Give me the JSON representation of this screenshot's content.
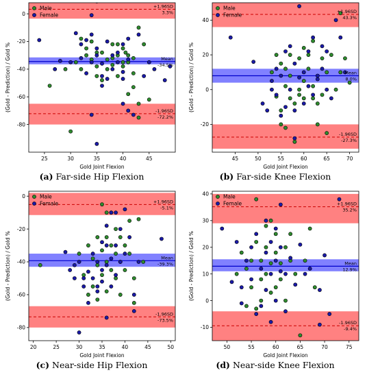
{
  "colors": {
    "male": "#2e8b2e",
    "female": "#1a1aa8",
    "limit_band": "#ff6b6b",
    "mean_band": "#6b6bff",
    "limit_line": "#cc0000",
    "mean_line": "#0000cc"
  },
  "legend": {
    "male": "Male",
    "female": "Female"
  },
  "chart_data": [
    {
      "type": "scatter",
      "caption": {
        "letter": "(a)",
        "text": "Far-side Hip Flexion"
      },
      "xlabel": "Gold Joint Flexion",
      "ylabel": "(Gold - Prediction) / Gold %",
      "xlim": [
        22,
        50
      ],
      "ylim": [
        -100,
        8
      ],
      "xticks": [
        25,
        30,
        35,
        40,
        45
      ],
      "yticks": [
        0,
        -20,
        -40,
        -60,
        -80
      ],
      "upper": {
        "label": "+1.96SD",
        "value_label": "3.3%",
        "value": 3.3,
        "band": [
          -3.5,
          10
        ]
      },
      "mean": {
        "label": "Mean",
        "value_label": "-34.5%",
        "value": -34.5,
        "band": [
          -36.5,
          -31.5
        ]
      },
      "lower": {
        "label": "-1.96SD",
        "value_label": "-72.2%",
        "value": -72.2,
        "band": [
          -80,
          -65
        ]
      },
      "male": [
        [
          26,
          -52
        ],
        [
          29,
          -40
        ],
        [
          30,
          -85
        ],
        [
          31,
          -35
        ],
        [
          32,
          -40
        ],
        [
          32,
          -18
        ],
        [
          33,
          -30
        ],
        [
          33,
          -25
        ],
        [
          34,
          -33
        ],
        [
          34,
          -20
        ],
        [
          35,
          -38
        ],
        [
          35,
          -28
        ],
        [
          35,
          -45
        ],
        [
          36,
          -28
        ],
        [
          36,
          -48
        ],
        [
          37,
          -33
        ],
        [
          37,
          -40
        ],
        [
          38,
          -22
        ],
        [
          38,
          -32
        ],
        [
          38,
          -37
        ],
        [
          39,
          -22
        ],
        [
          39,
          -30
        ],
        [
          39,
          -45
        ],
        [
          40,
          -25
        ],
        [
          40,
          -35
        ],
        [
          40,
          -38
        ],
        [
          40.5,
          -28
        ],
        [
          41,
          -30
        ],
        [
          41,
          -35
        ],
        [
          41,
          -58
        ],
        [
          42,
          -32
        ],
        [
          42,
          -43
        ],
        [
          42,
          -53
        ],
        [
          43,
          -65
        ],
        [
          43,
          -75
        ],
        [
          43,
          -10
        ],
        [
          44,
          -22
        ],
        [
          45,
          -62
        ]
      ],
      "female": [
        [
          24,
          -19
        ],
        [
          27,
          -40
        ],
        [
          28,
          -34
        ],
        [
          30,
          -35
        ],
        [
          31,
          -14
        ],
        [
          32,
          -22
        ],
        [
          32,
          -32
        ],
        [
          33,
          -19
        ],
        [
          33,
          -43
        ],
        [
          34,
          -35
        ],
        [
          34,
          -15
        ],
        [
          34,
          -73
        ],
        [
          34,
          -1
        ],
        [
          35,
          9
        ],
        [
          35,
          -25
        ],
        [
          35,
          -30
        ],
        [
          35,
          -94
        ],
        [
          36,
          -36
        ],
        [
          36,
          -45
        ],
        [
          36,
          -52
        ],
        [
          37,
          -20
        ],
        [
          37,
          -47
        ],
        [
          38,
          -30
        ],
        [
          38,
          -40
        ],
        [
          39,
          -28
        ],
        [
          39,
          -35
        ],
        [
          40,
          -22
        ],
        [
          40,
          -42
        ],
        [
          40,
          -47
        ],
        [
          40,
          -65
        ],
        [
          41,
          -18
        ],
        [
          41,
          -33
        ],
        [
          41,
          -70
        ],
        [
          42,
          -73
        ],
        [
          43,
          -15
        ],
        [
          44,
          -45
        ],
        [
          45,
          -35
        ],
        [
          46,
          -40
        ],
        [
          48,
          -48
        ],
        [
          49,
          -38
        ]
      ]
    },
    {
      "type": "scatter",
      "caption": {
        "letter": "(b)",
        "text": "Far-side Knee Flexion"
      },
      "xlabel": "Gold Joint Flexion",
      "ylabel": "(Gold - Prediction) / Gold %",
      "xlim": [
        40,
        72
      ],
      "ylim": [
        -36,
        50
      ],
      "xticks": [
        45,
        50,
        55,
        60,
        65,
        70
      ],
      "yticks": [
        40,
        20,
        0,
        -20
      ],
      "upper": {
        "label": "+1.96SD",
        "value_label": "43.3%",
        "value": 43.3,
        "band": [
          36,
          50
        ]
      },
      "mean": {
        "label": "Mean",
        "value_label": "8.0%",
        "value": 8.0,
        "band": [
          4,
          12
        ]
      },
      "lower": {
        "label": "-1.96SD",
        "value_label": "-27.3%",
        "value": -27.3,
        "band": [
          -34,
          -20
        ]
      },
      "male": [
        [
          53,
          10
        ],
        [
          54,
          20
        ],
        [
          54,
          -4
        ],
        [
          55,
          -20
        ],
        [
          55,
          15
        ],
        [
          55,
          -12
        ],
        [
          56,
          12
        ],
        [
          56,
          2
        ],
        [
          56,
          -22
        ],
        [
          57,
          20
        ],
        [
          57,
          8
        ],
        [
          57,
          -5
        ],
        [
          58,
          -30
        ],
        [
          58,
          -8
        ],
        [
          59,
          18
        ],
        [
          59,
          0
        ],
        [
          59,
          -3
        ],
        [
          60,
          24
        ],
        [
          60,
          5
        ],
        [
          60,
          -5
        ],
        [
          61,
          20
        ],
        [
          61,
          12
        ],
        [
          62,
          2
        ],
        [
          62,
          -5
        ],
        [
          62,
          28
        ],
        [
          63,
          -8
        ],
        [
          63,
          -20
        ],
        [
          64,
          18
        ],
        [
          64,
          -3
        ],
        [
          65,
          -25
        ],
        [
          65,
          10
        ],
        [
          66,
          20
        ],
        [
          67,
          0
        ],
        [
          68,
          10
        ],
        [
          68,
          44
        ],
        [
          69,
          18
        ],
        [
          70,
          4
        ]
      ],
      "female": [
        [
          44,
          30
        ],
        [
          49,
          16
        ],
        [
          51,
          -8
        ],
        [
          52,
          -12
        ],
        [
          53,
          0
        ],
        [
          53,
          5
        ],
        [
          54,
          -3
        ],
        [
          54,
          12
        ],
        [
          55,
          8
        ],
        [
          55,
          -15
        ],
        [
          56,
          22
        ],
        [
          56,
          -10
        ],
        [
          57,
          25
        ],
        [
          57,
          0
        ],
        [
          58,
          15
        ],
        [
          58,
          -12
        ],
        [
          58,
          -28
        ],
        [
          59,
          7
        ],
        [
          59,
          48
        ],
        [
          60,
          10
        ],
        [
          60,
          -8
        ],
        [
          61,
          22
        ],
        [
          61,
          2
        ],
        [
          62,
          30
        ],
        [
          62,
          -3
        ],
        [
          63,
          6
        ],
        [
          63,
          8
        ],
        [
          64,
          12
        ],
        [
          64,
          25
        ],
        [
          65,
          0
        ],
        [
          65,
          22
        ],
        [
          66,
          -5
        ],
        [
          67,
          40
        ],
        [
          68,
          30
        ],
        [
          69,
          10
        ]
      ]
    },
    {
      "type": "scatter",
      "caption": {
        "letter": "(c)",
        "text": "Near-side Hip Flexion"
      },
      "xlabel": "Gold Joint Flexion",
      "ylabel": "(Gold - Prediction) / Gold %",
      "xlim": [
        19,
        51
      ],
      "ylim": [
        -88,
        3
      ],
      "xticks": [
        20,
        25,
        30,
        35,
        40,
        45,
        50
      ],
      "yticks": [
        0,
        -20,
        -40,
        -60,
        -80
      ],
      "upper": {
        "label": "+1.96SD",
        "value_label": "-5.1%",
        "value": -5.1,
        "band": [
          -11.5,
          2
        ]
      },
      "mean": {
        "label": "Mean",
        "value_label": "-39.3%",
        "value": -39.3,
        "band": [
          -43,
          -35
        ]
      },
      "lower": {
        "label": "-1.96SD",
        "value_label": "-73.5%",
        "value": -73.5,
        "band": [
          -80,
          -67
        ]
      },
      "male": [
        [
          21.5,
          -42
        ],
        [
          30,
          -35
        ],
        [
          31,
          -48
        ],
        [
          32,
          -60
        ],
        [
          32,
          -30
        ],
        [
          33,
          -55
        ],
        [
          33,
          -38
        ],
        [
          34,
          -42
        ],
        [
          34,
          -25
        ],
        [
          34,
          -63
        ],
        [
          35,
          -5
        ],
        [
          35,
          -33
        ],
        [
          35,
          -48
        ],
        [
          36,
          -10
        ],
        [
          36,
          -25
        ],
        [
          36,
          -40
        ],
        [
          36,
          -58
        ],
        [
          37,
          -10
        ],
        [
          37,
          -30
        ],
        [
          37,
          -45
        ],
        [
          38,
          -20
        ],
        [
          38,
          -35
        ],
        [
          38,
          -50
        ],
        [
          39,
          -25
        ],
        [
          39,
          -40
        ],
        [
          39,
          -60
        ],
        [
          40,
          -30
        ],
        [
          40,
          -45
        ],
        [
          41,
          -15
        ],
        [
          41,
          -35
        ],
        [
          42,
          -50
        ],
        [
          42,
          -65
        ],
        [
          43,
          -14
        ],
        [
          44,
          -40
        ]
      ],
      "female": [
        [
          27,
          -34
        ],
        [
          28,
          -45
        ],
        [
          29,
          -42
        ],
        [
          29,
          -50
        ],
        [
          30,
          -83
        ],
        [
          30,
          -40
        ],
        [
          31,
          -50
        ],
        [
          31,
          -55
        ],
        [
          32,
          -46
        ],
        [
          32,
          -65
        ],
        [
          33,
          -35
        ],
        [
          33,
          -50
        ],
        [
          34,
          -40
        ],
        [
          34,
          -55
        ],
        [
          34,
          -58
        ],
        [
          35,
          -28
        ],
        [
          35,
          -45
        ],
        [
          35,
          -52
        ],
        [
          36,
          -18
        ],
        [
          36,
          -30
        ],
        [
          36,
          -42
        ],
        [
          36,
          -74
        ],
        [
          37,
          -10
        ],
        [
          37,
          -38
        ],
        [
          37,
          -55
        ],
        [
          38,
          -10
        ],
        [
          38,
          -30
        ],
        [
          38,
          -48
        ],
        [
          39,
          -20
        ],
        [
          39,
          -40
        ],
        [
          40,
          -8
        ],
        [
          40,
          -35
        ],
        [
          41,
          -25
        ],
        [
          42,
          -60
        ],
        [
          42,
          -70
        ],
        [
          43,
          -40
        ],
        [
          48,
          -26
        ]
      ]
    },
    {
      "type": "scatter",
      "caption": {
        "letter": "(d)",
        "text": "Near-side Knee Flexion"
      },
      "xlabel": "Gold Joint Flexion",
      "ylabel": "(Gold - Prediction) / Gold %",
      "xlim": [
        47,
        77
      ],
      "ylim": [
        -15,
        41
      ],
      "xticks": [
        50,
        55,
        60,
        65,
        70,
        75
      ],
      "yticks": [
        40,
        30,
        20,
        10,
        0,
        -10
      ],
      "upper": {
        "label": "+1.96SD",
        "value_label": "35.2%",
        "value": 35.2,
        "band": [
          29,
          40
        ]
      },
      "mean": {
        "label": "Mean",
        "value_label": "12.9%",
        "value": 12.9,
        "band": [
          11,
          15.5
        ]
      },
      "lower": {
        "label": "-1.96SD",
        "value_label": "-9.4%",
        "value": -9.4,
        "band": [
          -15,
          -4
        ]
      },
      "male": [
        [
          52,
          10
        ],
        [
          53,
          18
        ],
        [
          54,
          12
        ],
        [
          54,
          -2
        ],
        [
          55,
          15
        ],
        [
          55,
          5
        ],
        [
          56,
          38
        ],
        [
          56,
          -3
        ],
        [
          56,
          22
        ],
        [
          57,
          8
        ],
        [
          57,
          15
        ],
        [
          57,
          0
        ],
        [
          58,
          28
        ],
        [
          58,
          20
        ],
        [
          58,
          10
        ],
        [
          59,
          14
        ],
        [
          59,
          3
        ],
        [
          59,
          30
        ],
        [
          60,
          25
        ],
        [
          60,
          18
        ],
        [
          60,
          5
        ],
        [
          61,
          14
        ],
        [
          61,
          8
        ],
        [
          62,
          20
        ],
        [
          62,
          0
        ],
        [
          63,
          15
        ],
        [
          63,
          25
        ],
        [
          64,
          10
        ],
        [
          65,
          -13
        ],
        [
          66,
          15
        ],
        [
          67,
          27
        ],
        [
          68,
          5
        ]
      ],
      "female": [
        [
          49,
          27
        ],
        [
          51,
          7
        ],
        [
          52,
          22
        ],
        [
          53,
          5
        ],
        [
          53,
          -1
        ],
        [
          54,
          15
        ],
        [
          55,
          20
        ],
        [
          55,
          8
        ],
        [
          56,
          25
        ],
        [
          56,
          -5
        ],
        [
          57,
          12
        ],
        [
          57,
          -2
        ],
        [
          58,
          30
        ],
        [
          58,
          18
        ],
        [
          58,
          4
        ],
        [
          59,
          22
        ],
        [
          59,
          10
        ],
        [
          59,
          -8
        ],
        [
          60,
          27
        ],
        [
          60,
          15
        ],
        [
          60,
          0
        ],
        [
          61,
          36
        ],
        [
          61,
          20
        ],
        [
          61,
          11
        ],
        [
          62,
          10
        ],
        [
          62,
          -4
        ],
        [
          63,
          16
        ],
        [
          64,
          6
        ],
        [
          65,
          21
        ],
        [
          66,
          10
        ],
        [
          67,
          12
        ],
        [
          69,
          4
        ],
        [
          69,
          -9
        ],
        [
          70,
          17
        ],
        [
          71,
          -5
        ],
        [
          73,
          38
        ]
      ]
    }
  ]
}
